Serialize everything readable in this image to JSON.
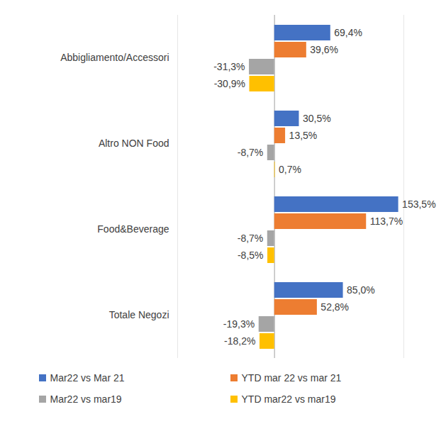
{
  "chart_data": {
    "type": "bar",
    "orientation": "horizontal",
    "categories": [
      "Abbigliamento/Accessori",
      "Altro NON Food",
      "Food&Beverage",
      "Totale Negozi"
    ],
    "series": [
      {
        "name": "Mar22 vs Mar 21",
        "color": "#4472c4",
        "values": [
          69.4,
          30.5,
          153.5,
          85.0
        ],
        "value_labels": [
          "69,4%",
          "30,5%",
          "153,5%",
          "85,0%"
        ]
      },
      {
        "name": "YTD mar 22 vs mar 21",
        "color": "#ed7d31",
        "values": [
          39.6,
          13.5,
          113.7,
          52.8
        ],
        "value_labels": [
          "39,6%",
          "13,5%",
          "113,7%",
          "52,8%"
        ]
      },
      {
        "name": "Mar22 vs mar19",
        "color": "#a5a5a5",
        "values": [
          -31.3,
          -8.7,
          -8.7,
          -19.3
        ],
        "value_labels": [
          "-31,3%",
          "-8,7%",
          "-8,7%",
          "-19,3%"
        ]
      },
      {
        "name": "YTD mar22 vs mar19",
        "color": "#ffc000",
        "values": [
          -30.9,
          0.7,
          -8.5,
          -18.2
        ],
        "value_labels": [
          "-30,9%",
          "0,7%",
          "-8,5%",
          "-18,2%"
        ]
      }
    ],
    "xlim": [
      -120,
      160
    ],
    "xticks": [
      0
    ],
    "grid": true,
    "data_labels": true,
    "tick_labels": "y",
    "legend": "bottom"
  }
}
